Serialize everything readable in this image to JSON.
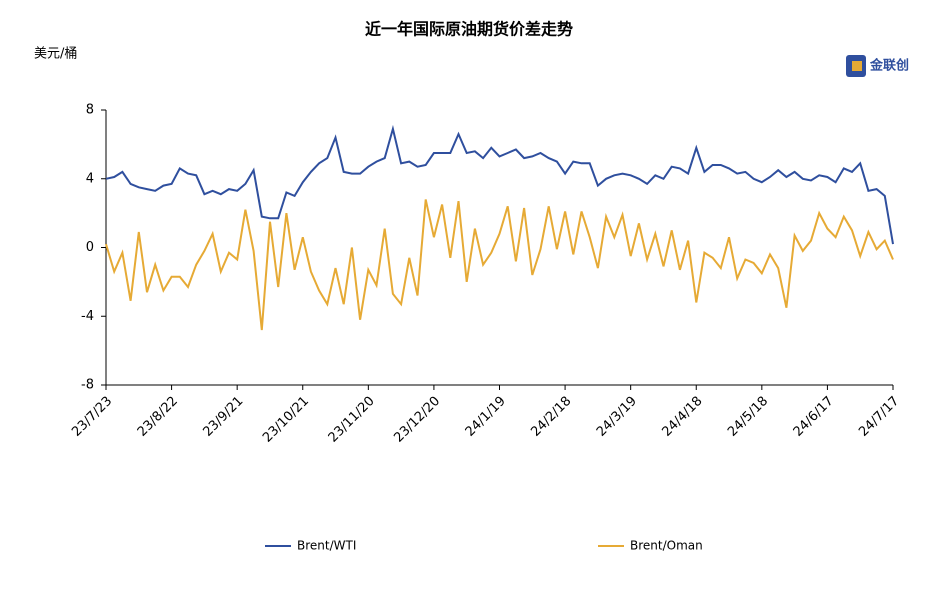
{
  "chart_data": {
    "type": "line",
    "title": "近一年国际原油期货价差走势",
    "y_label": "美元/桶",
    "logo": "金联创",
    "categories": [
      "23/7/23",
      null,
      null,
      null,
      null,
      null,
      null,
      null,
      "23/8/22",
      null,
      null,
      null,
      null,
      null,
      null,
      null,
      "23/9/21",
      null,
      null,
      null,
      null,
      null,
      null,
      null,
      "23/10/21",
      null,
      null,
      null,
      null,
      null,
      null,
      null,
      "23/11/20",
      null,
      null,
      null,
      null,
      null,
      null,
      null,
      "23/12/20",
      null,
      null,
      null,
      null,
      null,
      null,
      null,
      "24/1/19",
      null,
      null,
      null,
      null,
      null,
      null,
      null,
      "24/2/18",
      null,
      null,
      null,
      null,
      null,
      null,
      null,
      "24/3/19",
      null,
      null,
      null,
      null,
      null,
      null,
      null,
      "24/4/18",
      null,
      null,
      null,
      null,
      null,
      null,
      null,
      "24/5/18",
      null,
      null,
      null,
      null,
      null,
      null,
      null,
      "24/6/17",
      null,
      null,
      null,
      null,
      null,
      null,
      null,
      "24/7/17"
    ],
    "series": [
      {
        "name": "Brent/WTI",
        "color": "#2f4f9e",
        "values": [
          4.0,
          4.1,
          4.4,
          3.7,
          3.5,
          3.4,
          3.3,
          3.6,
          3.7,
          4.6,
          4.3,
          4.2,
          3.1,
          3.3,
          3.1,
          3.4,
          3.3,
          3.7,
          4.5,
          1.8,
          1.7,
          1.7,
          3.2,
          3.0,
          3.8,
          4.4,
          4.9,
          5.2,
          6.4,
          4.4,
          4.3,
          4.3,
          4.7,
          5.0,
          5.2,
          6.9,
          4.9,
          5.0,
          4.7,
          4.8,
          5.5,
          5.5,
          5.5,
          6.6,
          5.5,
          5.6,
          5.2,
          5.8,
          5.3,
          5.5,
          5.7,
          5.2,
          5.3,
          5.5,
          5.2,
          5.0,
          4.3,
          5.0,
          4.9,
          4.9,
          3.6,
          4.0,
          4.2,
          4.3,
          4.2,
          4.0,
          3.7,
          4.2,
          4.0,
          4.7,
          4.6,
          4.3,
          5.8,
          4.4,
          4.8,
          4.8,
          4.6,
          4.3,
          4.4,
          4.0,
          3.8,
          4.1,
          4.5,
          4.1,
          4.4,
          4.0,
          3.9,
          4.2,
          4.1,
          3.8,
          4.6,
          4.4,
          4.9,
          3.3,
          3.4,
          3.0,
          0.2
        ]
      },
      {
        "name": "Brent/Oman",
        "color": "#e6aa35",
        "values": [
          0.2,
          -1.4,
          -0.3,
          -3.1,
          0.9,
          -2.6,
          -1.0,
          -2.5,
          -1.7,
          -1.7,
          -2.3,
          -1.0,
          -0.2,
          0.8,
          -1.4,
          -0.3,
          -0.7,
          2.2,
          -0.2,
          -4.8,
          1.5,
          -2.3,
          2.0,
          -1.3,
          0.6,
          -1.4,
          -2.5,
          -3.3,
          -1.2,
          -3.3,
          0.0,
          -4.2,
          -1.3,
          -2.2,
          1.1,
          -2.7,
          -3.3,
          -0.6,
          -2.8,
          2.8,
          0.6,
          2.5,
          -0.6,
          2.7,
          -2.0,
          1.1,
          -1.0,
          -0.3,
          0.8,
          2.4,
          -0.8,
          2.3,
          -1.6,
          -0.1,
          2.4,
          -0.1,
          2.1,
          -0.4,
          2.1,
          0.6,
          -1.2,
          1.8,
          0.6,
          1.9,
          -0.5,
          1.4,
          -0.7,
          0.8,
          -1.1,
          1.0,
          -1.3,
          0.4,
          -3.2,
          -0.3,
          -0.6,
          -1.2,
          0.6,
          -1.8,
          -0.7,
          -0.9,
          -1.5,
          -0.4,
          -1.2,
          -3.5,
          0.7,
          -0.2,
          0.4,
          2.0,
          1.1,
          0.6,
          1.8,
          1.0,
          -0.5,
          0.9,
          -0.1,
          0.4,
          -0.7
        ]
      }
    ],
    "ylim": [
      -8,
      8
    ],
    "yticks": [
      -8,
      -4,
      0,
      4,
      8
    ],
    "grid": false
  }
}
